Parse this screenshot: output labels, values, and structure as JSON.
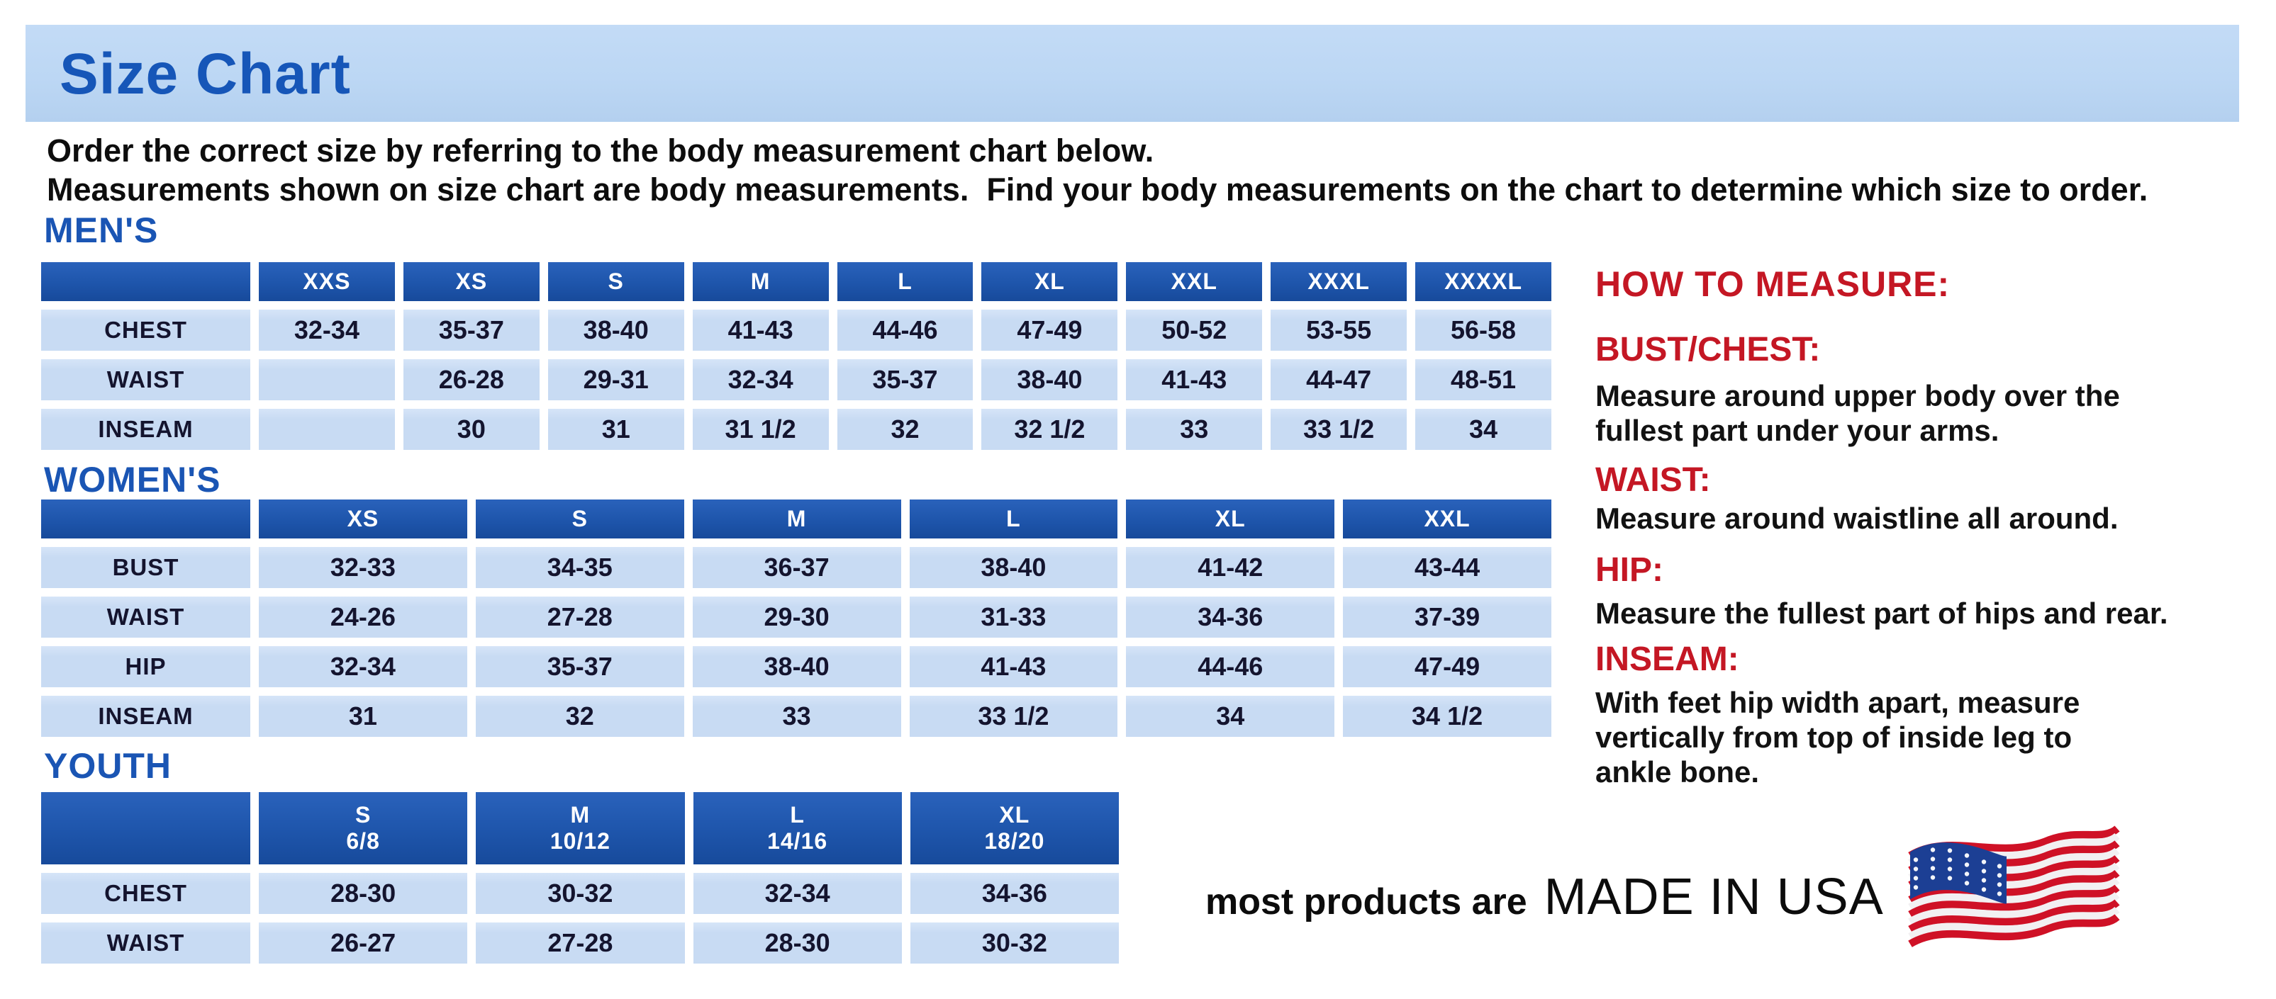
{
  "page": {
    "title": "Size Chart"
  },
  "intro": {
    "line1": "Order the correct size by referring to the body measurement chart below.",
    "line2": "Measurements shown on size chart are body measurements.  Find your body measurements on the chart to determine which size to order."
  },
  "tables": {
    "mens": {
      "heading": "MEN'S",
      "columns": [
        "XXS",
        "XS",
        "S",
        "M",
        "L",
        "XL",
        "XXL",
        "XXXL",
        "XXXXL"
      ],
      "rows": [
        {
          "label": "CHEST",
          "values": [
            "32-34",
            "35-37",
            "38-40",
            "41-43",
            "44-46",
            "47-49",
            "50-52",
            "53-55",
            "56-58"
          ]
        },
        {
          "label": "WAIST",
          "values": [
            "",
            "26-28",
            "29-31",
            "32-34",
            "35-37",
            "38-40",
            "41-43",
            "44-47",
            "48-51"
          ]
        },
        {
          "label": "INSEAM",
          "values": [
            "",
            "30",
            "31",
            "31 1/2",
            "32",
            "32 1/2",
            "33",
            "33 1/2",
            "34"
          ]
        }
      ]
    },
    "womens": {
      "heading": "WOMEN'S",
      "columns": [
        "XS",
        "S",
        "M",
        "L",
        "XL",
        "XXL"
      ],
      "rows": [
        {
          "label": "BUST",
          "values": [
            "32-33",
            "34-35",
            "36-37",
            "38-40",
            "41-42",
            "43-44"
          ]
        },
        {
          "label": "WAIST",
          "values": [
            "24-26",
            "27-28",
            "29-30",
            "31-33",
            "34-36",
            "37-39"
          ]
        },
        {
          "label": "HIP",
          "values": [
            "32-34",
            "35-37",
            "38-40",
            "41-43",
            "44-46",
            "47-49"
          ]
        },
        {
          "label": "INSEAM",
          "values": [
            "31",
            "32",
            "33",
            "33 1/2",
            "34",
            "34 1/2"
          ]
        }
      ]
    },
    "youth": {
      "heading": "YOUTH",
      "columns": [
        "S\n6/8",
        "M\n10/12",
        "L\n14/16",
        "XL\n18/20"
      ],
      "rows": [
        {
          "label": "CHEST",
          "values": [
            "28-30",
            "30-32",
            "32-34",
            "34-36"
          ]
        },
        {
          "label": "WAIST",
          "values": [
            "26-27",
            "27-28",
            "28-30",
            "30-32"
          ]
        }
      ]
    }
  },
  "how_to_measure": {
    "title": "HOW TO MEASURE:",
    "items": [
      {
        "label": "BUST/CHEST:",
        "text": "Measure around upper body over the\nfullest part under your arms."
      },
      {
        "label": "WAIST:",
        "text": "Measure around waistline all around."
      },
      {
        "label": "HIP:",
        "text": "Measure the fullest part of hips and rear."
      },
      {
        "label": "INSEAM:",
        "text": "With feet hip width apart, measure\nvertically from top of inside leg to\nankle bone."
      }
    ]
  },
  "footer": {
    "prefix": "most products are",
    "emphasis": "MADE IN USA",
    "flag_icon": "us-flag-icon"
  },
  "colors": {
    "banner_bg": "#bcd7f4",
    "heading_blue": "#1a55b4",
    "title_blue": "#1656b8",
    "table_header_bg": "#1e55ab",
    "cell_bg": "#c8dbf3",
    "red": "#c41724",
    "text_dark": "#14142e"
  }
}
